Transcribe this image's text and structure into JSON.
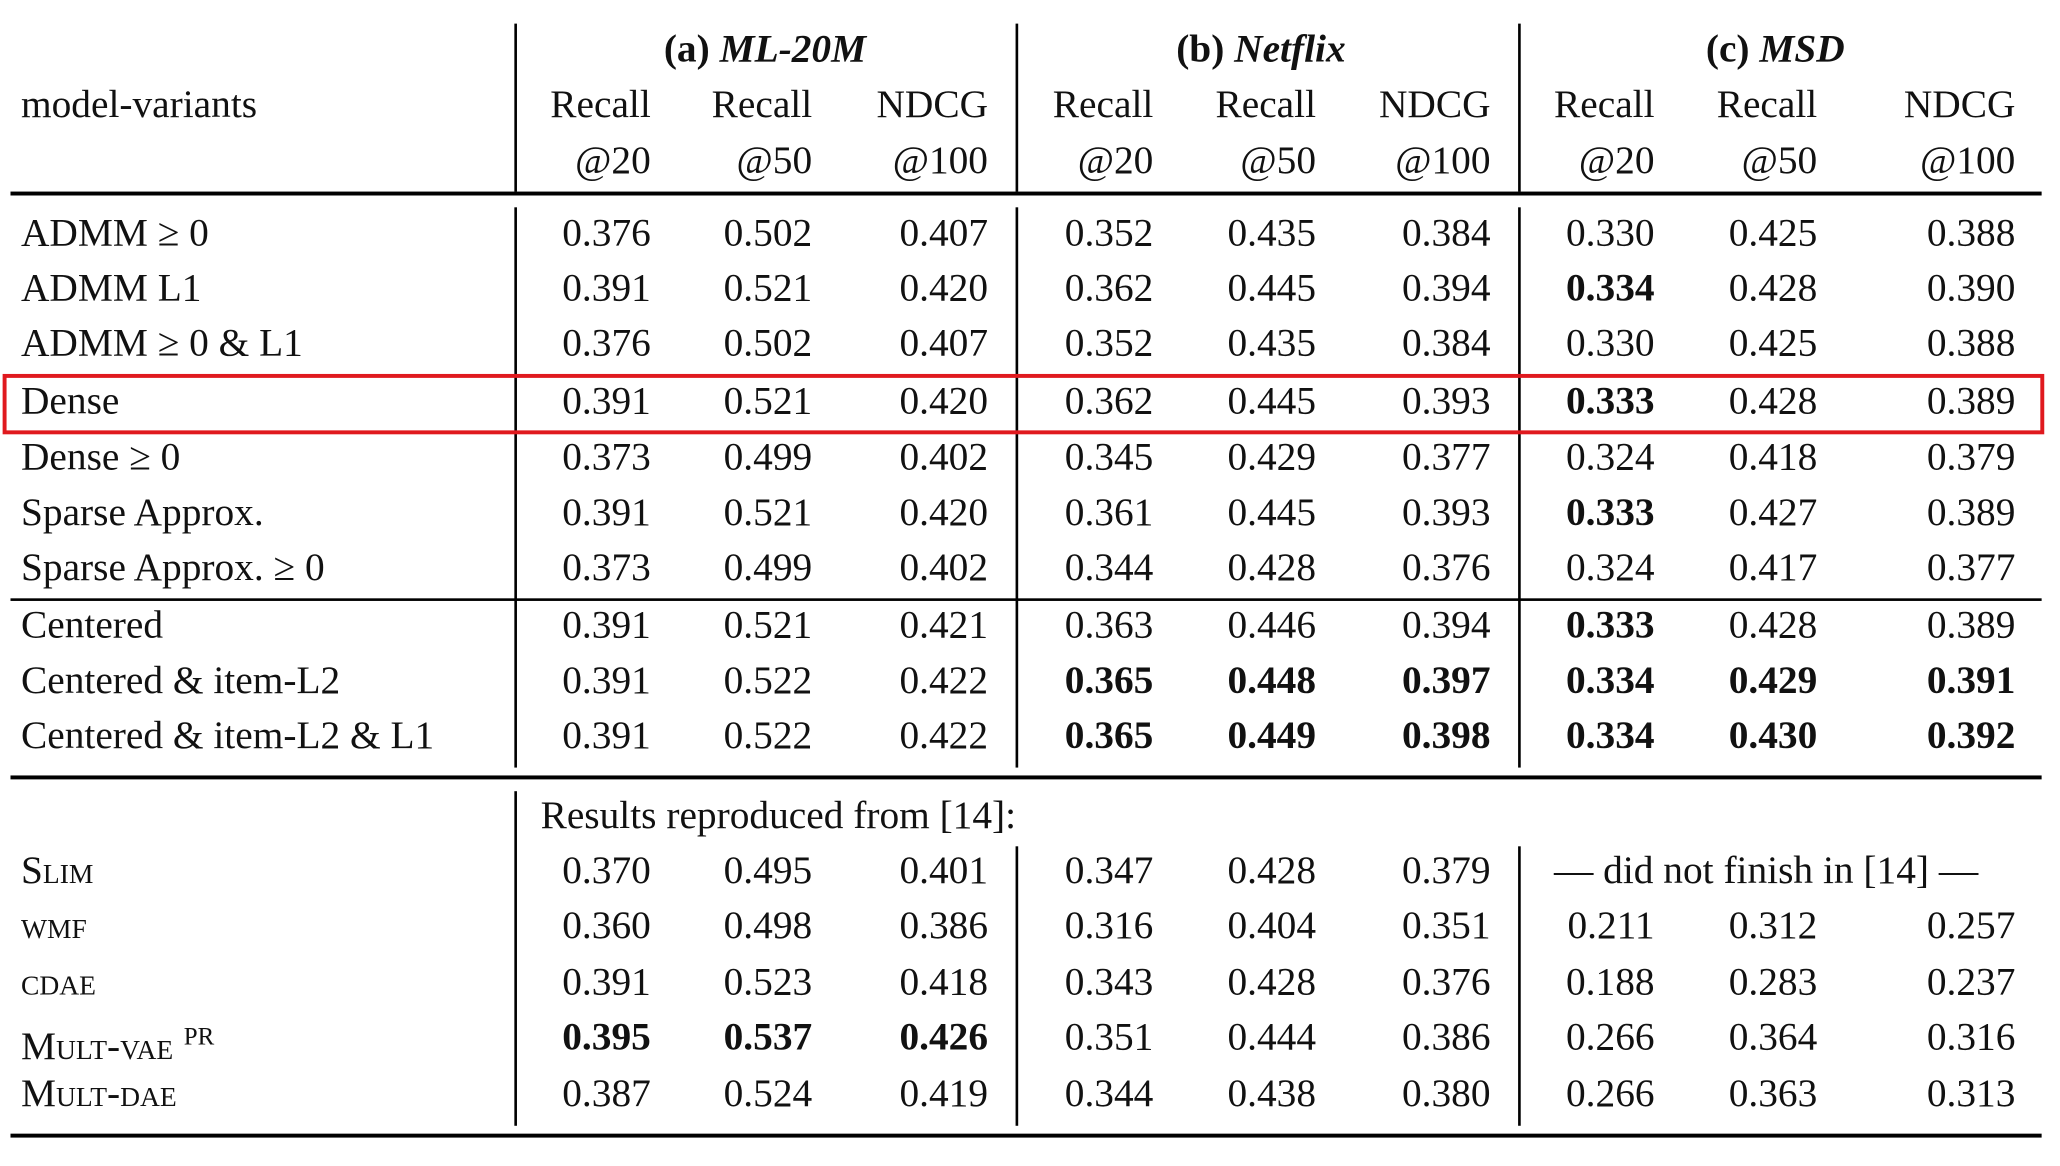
{
  "header": {
    "row_label": "model-variants",
    "groups": [
      {
        "prefix": "(a) ",
        "name": "ML-20M"
      },
      {
        "prefix": "(b) ",
        "name": "Netflix"
      },
      {
        "prefix": "(c) ",
        "name": "MSD"
      }
    ],
    "metrics_line1": [
      "Recall",
      "Recall",
      "NDCG"
    ],
    "metrics_line2": [
      "@20",
      "@50",
      "@100"
    ]
  },
  "section1": [
    {
      "label": "ADMM ≥ 0",
      "values": [
        "0.376",
        "0.502",
        "0.407",
        "0.352",
        "0.435",
        "0.384",
        "0.330",
        "0.425",
        "0.388"
      ],
      "bold": []
    },
    {
      "label": "ADMM L1",
      "values": [
        "0.391",
        "0.521",
        "0.420",
        "0.362",
        "0.445",
        "0.394",
        "0.334",
        "0.428",
        "0.390"
      ],
      "bold": [
        6
      ]
    },
    {
      "label": "ADMM ≥ 0 & L1",
      "values": [
        "0.376",
        "0.502",
        "0.407",
        "0.352",
        "0.435",
        "0.384",
        "0.330",
        "0.425",
        "0.388"
      ],
      "bold": []
    },
    {
      "label": "Dense",
      "values": [
        "0.391",
        "0.521",
        "0.420",
        "0.362",
        "0.445",
        "0.393",
        "0.333",
        "0.428",
        "0.389"
      ],
      "bold": [
        6
      ]
    },
    {
      "label": "Dense ≥ 0",
      "values": [
        "0.373",
        "0.499",
        "0.402",
        "0.345",
        "0.429",
        "0.377",
        "0.324",
        "0.418",
        "0.379"
      ],
      "bold": []
    },
    {
      "label": "Sparse Approx.",
      "values": [
        "0.391",
        "0.521",
        "0.420",
        "0.361",
        "0.445",
        "0.393",
        "0.333",
        "0.427",
        "0.389"
      ],
      "bold": [
        6
      ]
    },
    {
      "label": "Sparse Approx. ≥ 0",
      "values": [
        "0.373",
        "0.499",
        "0.402",
        "0.344",
        "0.428",
        "0.376",
        "0.324",
        "0.417",
        "0.377"
      ],
      "bold": []
    }
  ],
  "section2": [
    {
      "label": "Centered",
      "values": [
        "0.391",
        "0.521",
        "0.421",
        "0.363",
        "0.446",
        "0.394",
        "0.333",
        "0.428",
        "0.389"
      ],
      "bold": [
        6
      ]
    },
    {
      "label": "Centered & item-L2",
      "values": [
        "0.391",
        "0.522",
        "0.422",
        "0.365",
        "0.448",
        "0.397",
        "0.334",
        "0.429",
        "0.391"
      ],
      "bold": [
        3,
        4,
        5,
        6,
        7,
        8
      ]
    },
    {
      "label": "Centered & item-L2 & L1",
      "values": [
        "0.391",
        "0.522",
        "0.422",
        "0.365",
        "0.449",
        "0.398",
        "0.334",
        "0.430",
        "0.392"
      ],
      "bold": [
        3,
        4,
        5,
        6,
        7,
        8
      ]
    }
  ],
  "section3": {
    "note": "Results reproduced from [14]:",
    "rows": [
      {
        "label": "Slim",
        "sup": "",
        "values": [
          "0.370",
          "0.495",
          "0.401",
          "0.347",
          "0.428",
          "0.379"
        ],
        "msd_note": "— did not finish in [14] —",
        "bold": []
      },
      {
        "label": "wmf",
        "sup": "",
        "values": [
          "0.360",
          "0.498",
          "0.386",
          "0.316",
          "0.404",
          "0.351",
          "0.211",
          "0.312",
          "0.257"
        ],
        "bold": []
      },
      {
        "label": "cdae",
        "sup": "",
        "values": [
          "0.391",
          "0.523",
          "0.418",
          "0.343",
          "0.428",
          "0.376",
          "0.188",
          "0.283",
          "0.237"
        ],
        "bold": []
      },
      {
        "label": "Mult-vae",
        "sup": "PR",
        "values": [
          "0.395",
          "0.537",
          "0.426",
          "0.351",
          "0.444",
          "0.386",
          "0.266",
          "0.364",
          "0.316"
        ],
        "bold": [
          0,
          1,
          2
        ]
      },
      {
        "label": "Mult-dae",
        "sup": "",
        "values": [
          "0.387",
          "0.524",
          "0.419",
          "0.344",
          "0.438",
          "0.380",
          "0.266",
          "0.363",
          "0.313"
        ],
        "bold": []
      }
    ]
  },
  "highlight": {
    "row_label": "Dense",
    "color": "#e0191e"
  }
}
